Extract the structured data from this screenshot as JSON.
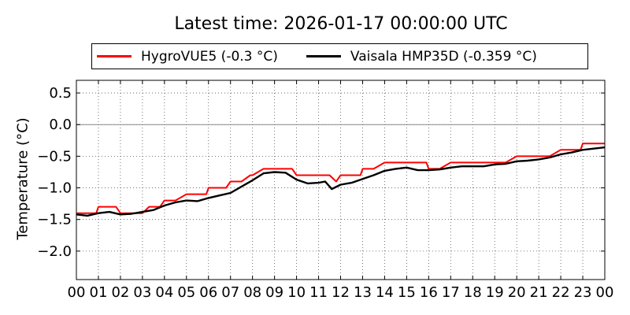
{
  "chart_data": {
    "type": "line",
    "title": "Latest time: 2026-01-17 00:00:00 UTC",
    "ylabel": "Temperature (°C)",
    "xlabel": "",
    "x_tick_labels": [
      "00",
      "01",
      "02",
      "03",
      "04",
      "05",
      "06",
      "07",
      "08",
      "09",
      "10",
      "11",
      "12",
      "13",
      "14",
      "15",
      "16",
      "17",
      "18",
      "19",
      "20",
      "21",
      "22",
      "23",
      "00"
    ],
    "x_ticks": [
      0,
      1,
      2,
      3,
      4,
      5,
      6,
      7,
      8,
      9,
      10,
      11,
      12,
      13,
      14,
      15,
      16,
      17,
      18,
      19,
      20,
      21,
      22,
      23,
      24
    ],
    "y_tick_labels": [
      "0.5",
      "0.0",
      "−0.5",
      "−1.0",
      "−1.5",
      "−2.0"
    ],
    "y_ticks": [
      0.5,
      0.0,
      -0.5,
      -1.0,
      -1.5,
      -2.0
    ],
    "xlim": [
      0,
      24
    ],
    "ylim": [
      -2.45,
      0.7
    ],
    "grid": true,
    "legend_position": "top",
    "reference_line": 0.0,
    "series": [
      {
        "name": "HygroVUE5 (-0.3 °C)",
        "color": "#ff0000",
        "x": [
          0,
          0.5,
          0.9,
          1.0,
          1.2,
          1.8,
          2.0,
          2.8,
          3.0,
          3.3,
          3.8,
          4.0,
          4.5,
          5.0,
          5.5,
          5.9,
          6.0,
          6.5,
          6.8,
          7.0,
          7.5,
          7.9,
          8.0,
          8.5,
          9.0,
          9.5,
          9.8,
          10.0,
          10.5,
          11.0,
          11.5,
          11.8,
          12.0,
          12.5,
          12.9,
          13.0,
          13.5,
          14.0,
          14.5,
          15.0,
          15.5,
          15.9,
          16.0,
          16.5,
          17.0,
          17.5,
          18.0,
          18.5,
          19.0,
          19.5,
          20.0,
          20.5,
          21.0,
          21.5,
          22.0,
          22.5,
          22.9,
          23.0,
          23.5,
          24.0
        ],
        "y": [
          -1.4,
          -1.4,
          -1.4,
          -1.3,
          -1.3,
          -1.3,
          -1.4,
          -1.4,
          -1.4,
          -1.3,
          -1.3,
          -1.2,
          -1.2,
          -1.1,
          -1.1,
          -1.1,
          -1.0,
          -1.0,
          -1.0,
          -0.9,
          -0.9,
          -0.8,
          -0.8,
          -0.7,
          -0.7,
          -0.7,
          -0.7,
          -0.8,
          -0.8,
          -0.8,
          -0.8,
          -0.9,
          -0.8,
          -0.8,
          -0.8,
          -0.7,
          -0.7,
          -0.6,
          -0.6,
          -0.6,
          -0.6,
          -0.6,
          -0.7,
          -0.7,
          -0.6,
          -0.6,
          -0.6,
          -0.6,
          -0.6,
          -0.6,
          -0.5,
          -0.5,
          -0.5,
          -0.5,
          -0.4,
          -0.4,
          -0.4,
          -0.3,
          -0.3,
          -0.3
        ]
      },
      {
        "name": "Vaisala HMP35D (-0.359 °C)",
        "color": "#000000",
        "x": [
          0,
          0.5,
          1.0,
          1.5,
          2.0,
          2.5,
          3.0,
          3.5,
          4.0,
          4.5,
          5.0,
          5.5,
          6.0,
          6.5,
          7.0,
          7.5,
          8.0,
          8.5,
          9.0,
          9.5,
          10.0,
          10.5,
          11.0,
          11.3,
          11.6,
          12.0,
          12.5,
          13.0,
          13.5,
          14.0,
          14.5,
          15.0,
          15.5,
          16.0,
          16.5,
          17.0,
          17.5,
          18.0,
          18.5,
          19.0,
          19.5,
          20.0,
          20.5,
          21.0,
          21.5,
          22.0,
          22.5,
          23.0,
          23.5,
          24.0
        ],
        "y": [
          -1.42,
          -1.44,
          -1.4,
          -1.38,
          -1.42,
          -1.41,
          -1.38,
          -1.35,
          -1.28,
          -1.23,
          -1.2,
          -1.21,
          -1.16,
          -1.12,
          -1.08,
          -0.98,
          -0.88,
          -0.77,
          -0.75,
          -0.76,
          -0.87,
          -0.93,
          -0.92,
          -0.9,
          -1.02,
          -0.95,
          -0.92,
          -0.86,
          -0.8,
          -0.73,
          -0.7,
          -0.68,
          -0.72,
          -0.72,
          -0.71,
          -0.68,
          -0.66,
          -0.66,
          -0.66,
          -0.63,
          -0.62,
          -0.58,
          -0.57,
          -0.55,
          -0.52,
          -0.47,
          -0.44,
          -0.4,
          -0.38,
          -0.36
        ]
      }
    ]
  }
}
